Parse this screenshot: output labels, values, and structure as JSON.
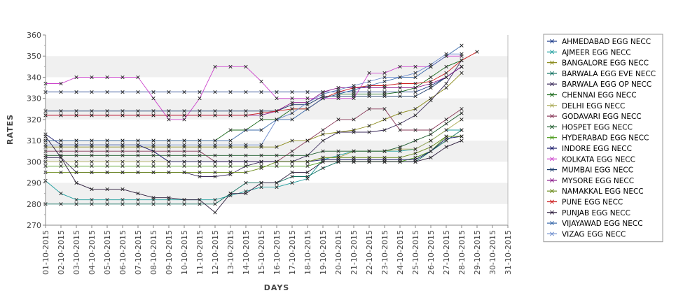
{
  "chart_data": {
    "type": "line",
    "xlabel": "DAYS",
    "ylabel": "RATES",
    "ylim": [
      270,
      360
    ],
    "yticks": [
      270,
      280,
      290,
      300,
      310,
      320,
      330,
      340,
      350,
      360
    ],
    "x": [
      "01-10-2015",
      "02-10-2015",
      "03-10-2015",
      "04-10-2015",
      "05-10-2015",
      "06-10-2015",
      "07-10-2015",
      "08-10-2015",
      "09-10-2015",
      "10-10-2015",
      "11-10-2015",
      "12-10-2015",
      "13-10-2015",
      "14-10-2015",
      "15-10-2015",
      "16-10-2015",
      "17-10-2015",
      "18-10-2015",
      "19-10-2015",
      "20-10-2015",
      "21-10-2015",
      "22-10-2015",
      "23-10-2015",
      "24-10-2015",
      "25-10-2015",
      "26-10-2015",
      "27-10-2015",
      "28-10-2015",
      "29-10-2015",
      "30-10-2015",
      "31-10-2015"
    ],
    "grid": "alternating horizontal bands",
    "legend_position": "right",
    "series": [
      {
        "name": "AHMEDABAD EGG NECC",
        "color": "#1a3a8a",
        "values": [
          333,
          333,
          333,
          333,
          333,
          333,
          333,
          333,
          333,
          333,
          333,
          333,
          333,
          333,
          333,
          333,
          333,
          333,
          333,
          333,
          333,
          333,
          333,
          333,
          333,
          336,
          340,
          345,
          null,
          null,
          null
        ]
      },
      {
        "name": "AJMEER EGG NECC",
        "color": "#1e9e9e",
        "values": [
          291,
          285,
          282,
          282,
          282,
          282,
          282,
          282,
          282,
          282,
          282,
          282,
          284,
          286,
          288,
          288,
          290,
          292,
          301,
          303,
          305,
          305,
          305,
          305,
          306,
          310,
          315,
          315,
          null,
          null,
          null
        ]
      },
      {
        "name": "BANGALORE EGG NECC",
        "color": "#8a8a1a",
        "values": [
          307,
          307,
          307,
          307,
          307,
          307,
          307,
          307,
          307,
          307,
          307,
          307,
          307,
          307,
          307,
          307,
          310,
          310,
          313,
          314,
          315,
          317,
          320,
          323,
          325,
          330,
          335,
          342,
          null,
          null,
          null
        ]
      },
      {
        "name": "BARWALA EGG EVE NECC",
        "color": "#0e6e5e",
        "values": [
          280,
          280,
          280,
          280,
          280,
          280,
          280,
          280,
          280,
          280,
          280,
          280,
          285,
          290,
          290,
          290,
          293,
          293,
          297,
          300,
          300,
          300,
          300,
          300,
          300,
          305,
          310,
          315,
          null,
          null,
          null
        ]
      },
      {
        "name": "BARWALA EGG OP NECC",
        "color": "#3a2a5a",
        "values": [
          302,
          302,
          295,
          295,
          295,
          295,
          295,
          295,
          295,
          295,
          293,
          293,
          294,
          298,
          300,
          300,
          300,
          303,
          310,
          314,
          314,
          314,
          315,
          318,
          322,
          329,
          337,
          348,
          null,
          null,
          null
        ]
      },
      {
        "name": "CHENNAI EGG NECC",
        "color": "#1a6a1a",
        "values": [
          310,
          310,
          310,
          310,
          310,
          310,
          310,
          310,
          310,
          310,
          310,
          310,
          315,
          315,
          320,
          320,
          325,
          325,
          330,
          332,
          332,
          332,
          332,
          333,
          335,
          340,
          345,
          348,
          null,
          null,
          null
        ]
      },
      {
        "name": "DELHI EGG NECC",
        "color": "#aaaa55",
        "values": [
          300,
          300,
          300,
          300,
          300,
          300,
          300,
          300,
          300,
          300,
          300,
          300,
          300,
          300,
          300,
          300,
          300,
          300,
          302,
          302,
          305,
          305,
          305,
          306,
          306,
          310,
          315,
          320,
          null,
          null,
          null
        ]
      },
      {
        "name": "GODAVARI EGG NECC",
        "color": "#8a3a5a",
        "values": [
          305,
          305,
          305,
          305,
          305,
          305,
          305,
          305,
          305,
          305,
          305,
          300,
          300,
          300,
          300,
          300,
          305,
          310,
          315,
          320,
          320,
          325,
          325,
          315,
          315,
          315,
          320,
          325,
          null,
          null,
          null
        ]
      },
      {
        "name": "HOSPET EGG NECC",
        "color": "#1a5a2a",
        "values": [
          303,
          303,
          303,
          303,
          303,
          303,
          303,
          303,
          303,
          303,
          303,
          303,
          303,
          303,
          303,
          303,
          303,
          303,
          305,
          305,
          305,
          305,
          305,
          307,
          310,
          313,
          318,
          323,
          null,
          null,
          null
        ]
      },
      {
        "name": "HYDERABAD EGG NECC",
        "color": "#4a9a1a",
        "values": [
          298,
          298,
          298,
          298,
          298,
          298,
          298,
          298,
          298,
          298,
          298,
          298,
          298,
          298,
          298,
          298,
          298,
          298,
          300,
          300,
          300,
          300,
          300,
          300,
          302,
          305,
          312,
          312,
          null,
          null,
          null
        ]
      },
      {
        "name": "INDORE EGG NECC",
        "color": "#1a1a6a",
        "values": [
          313,
          308,
          308,
          308,
          308,
          308,
          308,
          305,
          300,
          300,
          300,
          300,
          300,
          300,
          300,
          300,
          300,
          300,
          301,
          301,
          301,
          301,
          301,
          301,
          301,
          305,
          311,
          312,
          null,
          null,
          null
        ]
      },
      {
        "name": "KOLKATA EGG NECC",
        "color": "#cc44cc",
        "values": [
          337,
          337,
          340,
          340,
          340,
          340,
          340,
          330,
          320,
          320,
          330,
          345,
          345,
          345,
          338,
          330,
          330,
          330,
          330,
          330,
          330,
          342,
          342,
          345,
          345,
          345,
          350,
          350,
          null,
          null,
          null
        ]
      },
      {
        "name": "MUMBAI EGG NECC",
        "color": "#1a3a6a",
        "values": [
          324,
          324,
          324,
          324,
          324,
          324,
          324,
          324,
          324,
          324,
          324,
          324,
          324,
          324,
          324,
          324,
          327,
          327,
          331,
          331,
          331,
          331,
          331,
          331,
          331,
          335,
          340,
          345,
          null,
          null,
          null
        ]
      },
      {
        "name": "MYSORE EGG NECC",
        "color": "#8a1a8a",
        "values": [
          322,
          322,
          322,
          322,
          322,
          322,
          322,
          322,
          322,
          322,
          322,
          322,
          322,
          322,
          322,
          324,
          328,
          328,
          333,
          335,
          335,
          335,
          335,
          335,
          335,
          337,
          340,
          345,
          null,
          null,
          null
        ]
      },
      {
        "name": "NAMAKKAL EGG NECC",
        "color": "#6a8a1a",
        "values": [
          295,
          295,
          295,
          295,
          295,
          295,
          295,
          295,
          295,
          295,
          295,
          295,
          295,
          295,
          297,
          300,
          300,
          300,
          302,
          302,
          302,
          302,
          302,
          302,
          304,
          307,
          312,
          312,
          null,
          null,
          null
        ]
      },
      {
        "name": "PUNE EGG NECC",
        "color": "#cc2222",
        "values": [
          322,
          322,
          322,
          322,
          322,
          322,
          322,
          322,
          322,
          322,
          322,
          322,
          322,
          322,
          323,
          324,
          325,
          325,
          330,
          333,
          335,
          336,
          336,
          337,
          337,
          338,
          342,
          348,
          352,
          null,
          null
        ]
      },
      {
        "name": "PUNJAB EGG NECC",
        "color": "#2a1a3a",
        "values": [
          312,
          302,
          290,
          287,
          287,
          287,
          285,
          283,
          283,
          282,
          282,
          276,
          285,
          285,
          290,
          290,
          295,
          295,
          300,
          300,
          300,
          300,
          300,
          300,
          300,
          302,
          307,
          310,
          null,
          null,
          null
        ]
      },
      {
        "name": "VIJAYAWAD EGG NECC",
        "color": "#3a6aaa",
        "values": [
          310,
          310,
          310,
          310,
          310,
          310,
          310,
          310,
          310,
          310,
          310,
          310,
          310,
          315,
          315,
          320,
          320,
          325,
          330,
          332,
          334,
          336,
          338,
          340,
          340,
          345,
          350,
          355,
          null,
          null,
          null
        ]
      },
      {
        "name": "VIZAG EGG NECC",
        "color": "#6a8acc",
        "values": [
          308,
          308,
          308,
          308,
          308,
          308,
          308,
          308,
          308,
          308,
          308,
          308,
          308,
          308,
          308,
          320,
          323,
          328,
          332,
          334,
          336,
          338,
          340,
          340,
          342,
          346,
          351,
          351,
          null,
          null,
          null
        ]
      }
    ]
  }
}
